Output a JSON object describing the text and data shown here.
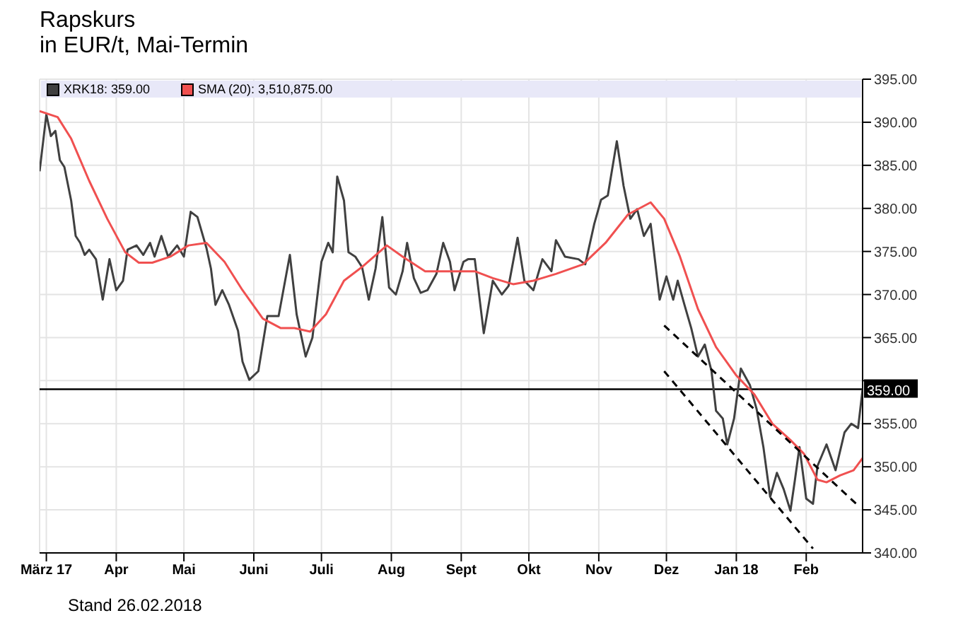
{
  "chart_data": {
    "type": "line",
    "title": "Rapskurs",
    "subtitle": "in EUR/t, Mai-Termin",
    "annotations": [
      "Stand 26.02.2018"
    ],
    "xlim": [
      "2017-02-26",
      "2018-02-26"
    ],
    "xticks": [
      {
        "value": "2017-03-01",
        "label": "März 17"
      },
      {
        "value": "2017-04-01",
        "label": "Apr"
      },
      {
        "value": "2017-05-01",
        "label": "Mai"
      },
      {
        "value": "2017-06-01",
        "label": "Juni"
      },
      {
        "value": "2017-07-01",
        "label": "Juli"
      },
      {
        "value": "2017-08-01",
        "label": "Aug"
      },
      {
        "value": "2017-09-01",
        "label": "Sept"
      },
      {
        "value": "2017-10-01",
        "label": "Okt"
      },
      {
        "value": "2017-11-01",
        "label": "Nov"
      },
      {
        "value": "2017-12-01",
        "label": "Dez"
      },
      {
        "value": "2018-01-01",
        "label": "Jan 18"
      },
      {
        "value": "2018-02-01",
        "label": "Feb"
      }
    ],
    "ylim": [
      340,
      395
    ],
    "yticks": [
      {
        "value": 340,
        "label": "340.00"
      },
      {
        "value": 345,
        "label": "345.00"
      },
      {
        "value": 350,
        "label": "350.00"
      },
      {
        "value": 355,
        "label": "355.00"
      },
      {
        "value": 360,
        "label": null
      },
      {
        "value": 365,
        "label": "365.00"
      },
      {
        "value": 370,
        "label": "370.00"
      },
      {
        "value": 375,
        "label": "375.00"
      },
      {
        "value": 380,
        "label": "380.00"
      },
      {
        "value": 385,
        "label": "385.00"
      },
      {
        "value": 390,
        "label": "390.00"
      },
      {
        "value": 395,
        "label": "395.00"
      }
    ],
    "grid": true,
    "legend": "top left",
    "marker": "none",
    "ref_lines": [
      {
        "axis": "y",
        "value": 359,
        "label": "359.00",
        "color": "#000000"
      }
    ],
    "series": [
      {
        "name": "XRK18: 359.00",
        "color": "#404040",
        "x": [
          "2017-02-26",
          "2017-03-01",
          "2017-03-03",
          "2017-03-05",
          "2017-03-07",
          "2017-03-09",
          "2017-03-12",
          "2017-03-14",
          "2017-03-16",
          "2017-03-18",
          "2017-03-20",
          "2017-03-23",
          "2017-03-26",
          "2017-03-29",
          "2017-04-01",
          "2017-04-04",
          "2017-04-06",
          "2017-04-10",
          "2017-04-13",
          "2017-04-16",
          "2017-04-18",
          "2017-04-21",
          "2017-04-24",
          "2017-04-28",
          "2017-05-01",
          "2017-05-04",
          "2017-05-07",
          "2017-05-11",
          "2017-05-13",
          "2017-05-15",
          "2017-05-18",
          "2017-05-21",
          "2017-05-25",
          "2017-05-27",
          "2017-05-30",
          "2017-06-03",
          "2017-06-07",
          "2017-06-12",
          "2017-06-17",
          "2017-06-20",
          "2017-06-24",
          "2017-06-27",
          "2017-07-01",
          "2017-07-04",
          "2017-07-06",
          "2017-07-08",
          "2017-07-11",
          "2017-07-13",
          "2017-07-16",
          "2017-07-19",
          "2017-07-22",
          "2017-07-25",
          "2017-07-28",
          "2017-07-31",
          "2017-08-03",
          "2017-08-06",
          "2017-08-08",
          "2017-08-11",
          "2017-08-14",
          "2017-08-17",
          "2017-08-21",
          "2017-08-24",
          "2017-08-27",
          "2017-08-29",
          "2017-09-02",
          "2017-09-04",
          "2017-09-07",
          "2017-09-11",
          "2017-09-15",
          "2017-09-19",
          "2017-09-22",
          "2017-09-26",
          "2017-09-29",
          "2017-10-03",
          "2017-10-07",
          "2017-10-11",
          "2017-10-13",
          "2017-10-17",
          "2017-10-23",
          "2017-10-26",
          "2017-10-30",
          "2017-11-02",
          "2017-11-05",
          "2017-11-09",
          "2017-11-12",
          "2017-11-15",
          "2017-11-18",
          "2017-11-21",
          "2017-11-24",
          "2017-11-28",
          "2017-12-01",
          "2017-12-04",
          "2017-12-06",
          "2017-12-09",
          "2017-12-12",
          "2017-12-15",
          "2017-12-18",
          "2017-12-21",
          "2017-12-23",
          "2017-12-26",
          "2017-12-28",
          "2017-12-31",
          "2018-01-03",
          "2018-01-07",
          "2018-01-10",
          "2018-01-13",
          "2018-01-16",
          "2018-01-19",
          "2018-01-22",
          "2018-01-25",
          "2018-01-27",
          "2018-01-29",
          "2018-02-01",
          "2018-02-04",
          "2018-02-06",
          "2018-02-10",
          "2018-02-14",
          "2018-02-18",
          "2018-02-21",
          "2018-02-24",
          "2018-02-26"
        ],
        "values": [
          384.3,
          390.9,
          388.4,
          389,
          385.6,
          384.8,
          380.9,
          376.8,
          376,
          374.6,
          375.2,
          374.1,
          369.4,
          374.1,
          370.5,
          371.6,
          375.2,
          375.7,
          374.6,
          376,
          374.4,
          376.8,
          374.4,
          375.7,
          374.4,
          379.6,
          379,
          375.4,
          373,
          368.8,
          370.5,
          368.8,
          365.8,
          362.2,
          360.1,
          361.1,
          367.5,
          367.5,
          374.6,
          367.7,
          362.8,
          365,
          373.8,
          376,
          374.9,
          383.7,
          380.9,
          374.9,
          374.4,
          373.2,
          369.4,
          373,
          379,
          370.8,
          370,
          372.7,
          376,
          371.9,
          370.2,
          370.5,
          372.4,
          376,
          373.8,
          370.5,
          373.8,
          374.1,
          374.1,
          365.5,
          371.6,
          370,
          371,
          376.6,
          371.6,
          370.5,
          374.1,
          372.7,
          376.3,
          374.4,
          374.1,
          373.5,
          378.2,
          381,
          381.5,
          387.8,
          382.6,
          378.8,
          379.9,
          376.8,
          378.2,
          369.4,
          372.1,
          369.4,
          371.6,
          368.8,
          366.1,
          362.8,
          364.2,
          361.1,
          356.5,
          355.6,
          352.6,
          355.6,
          361.4,
          359.5,
          356.7,
          352.3,
          346.5,
          349.3,
          347.4,
          344.9,
          348.5,
          352.3,
          346.3,
          345.7,
          350.1,
          352.6,
          349.6,
          354,
          355,
          354.5,
          359
        ]
      },
      {
        "name": "SMA (20): 3,510,875.00",
        "color": "#f05050",
        "x": [
          "2017-02-26",
          "2017-03-06",
          "2017-03-12",
          "2017-03-20",
          "2017-03-28",
          "2017-04-05",
          "2017-04-11",
          "2017-04-17",
          "2017-04-25",
          "2017-05-03",
          "2017-05-11",
          "2017-05-19",
          "2017-05-27",
          "2017-06-05",
          "2017-06-13",
          "2017-06-19",
          "2017-06-26",
          "2017-07-03",
          "2017-07-11",
          "2017-07-19",
          "2017-07-30",
          "2017-08-06",
          "2017-08-16",
          "2017-08-28",
          "2017-09-07",
          "2017-09-15",
          "2017-09-24",
          "2017-10-03",
          "2017-10-13",
          "2017-10-25",
          "2017-11-04",
          "2017-11-14",
          "2017-11-24",
          "2017-11-30",
          "2017-12-07",
          "2017-12-15",
          "2017-12-23",
          "2018-01-01",
          "2018-01-09",
          "2018-01-17",
          "2018-01-25",
          "2018-01-31",
          "2018-02-06",
          "2018-02-10",
          "2018-02-16",
          "2018-02-22",
          "2018-02-26"
        ],
        "values": [
          391.3,
          390.6,
          388.1,
          383.2,
          378.8,
          374.9,
          373.7,
          373.7,
          374.4,
          375.7,
          376,
          373.8,
          370.5,
          367.2,
          366.1,
          366.1,
          365.7,
          367.7,
          371.6,
          373.2,
          375.7,
          374.4,
          372.7,
          372.7,
          372.7,
          371.9,
          371.2,
          371.6,
          372.4,
          373.5,
          376,
          379.3,
          380.7,
          378.8,
          374.4,
          368.3,
          363.9,
          360.6,
          358.4,
          355,
          353.1,
          351.5,
          348.5,
          348.2,
          349,
          349.6,
          351
        ]
      },
      {
        "type": "line",
        "color": "#000000",
        "line_style": "dashed",
        "x": [
          "2017-11-30",
          "2018-02-24"
        ],
        "values": [
          366.4,
          345.5
        ]
      },
      {
        "type": "line",
        "color": "#000000",
        "line_style": "dashed",
        "x": [
          "2017-11-30",
          "2018-02-04"
        ],
        "values": [
          361.1,
          340.5
        ]
      }
    ]
  }
}
